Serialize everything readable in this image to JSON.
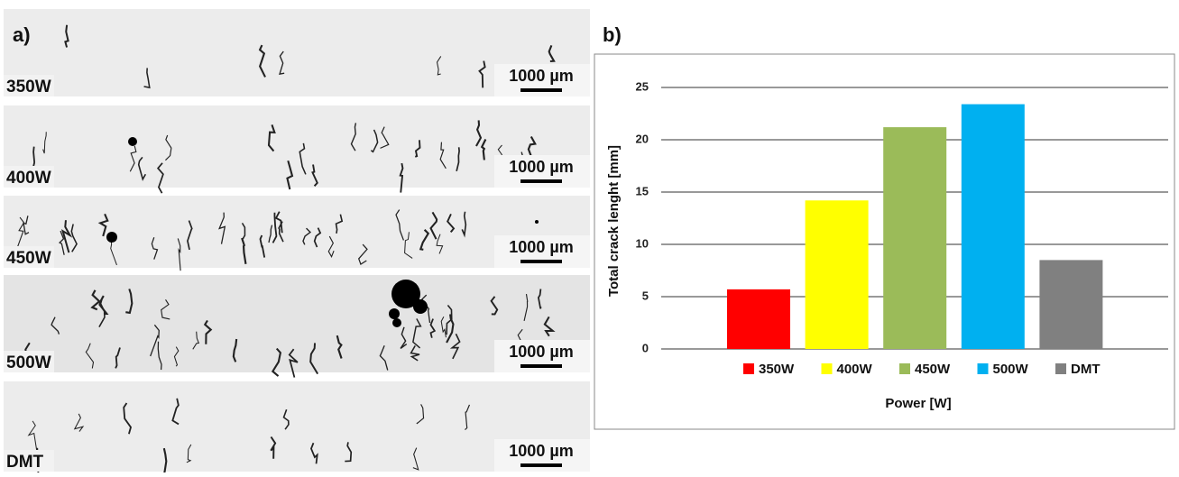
{
  "panel_a": {
    "label": "a)",
    "images": [
      {
        "label": "350W",
        "scale_bar": "1000 µm"
      },
      {
        "label": "400W",
        "scale_bar": "1000 µm"
      },
      {
        "label": "450W",
        "scale_bar": "1000 µm"
      },
      {
        "label": "500W",
        "scale_bar": "1000 µm"
      },
      {
        "label": "DMT",
        "scale_bar": "1000 µm"
      }
    ]
  },
  "panel_b": {
    "label": "b)"
  },
  "chart_data": {
    "type": "bar",
    "y_label": "Total crack lenght [mm]",
    "x_label": "Power [W]",
    "series": [
      {
        "name": "350W",
        "color": "#ff0000",
        "values": [
          5.7
        ]
      },
      {
        "name": "400W",
        "color": "#ffff00",
        "values": [
          14.2
        ]
      },
      {
        "name": "450W",
        "color": "#9bbb59",
        "values": [
          21.2
        ]
      },
      {
        "name": "500W",
        "color": "#00b0f0",
        "values": [
          23.4
        ]
      },
      {
        "name": "DMT",
        "color": "#808080",
        "values": [
          8.5
        ]
      }
    ],
    "ylim": [
      0,
      25
    ],
    "yticks": [
      0,
      5,
      10,
      15,
      20,
      25
    ],
    "grid": true,
    "legend": "bottom"
  }
}
